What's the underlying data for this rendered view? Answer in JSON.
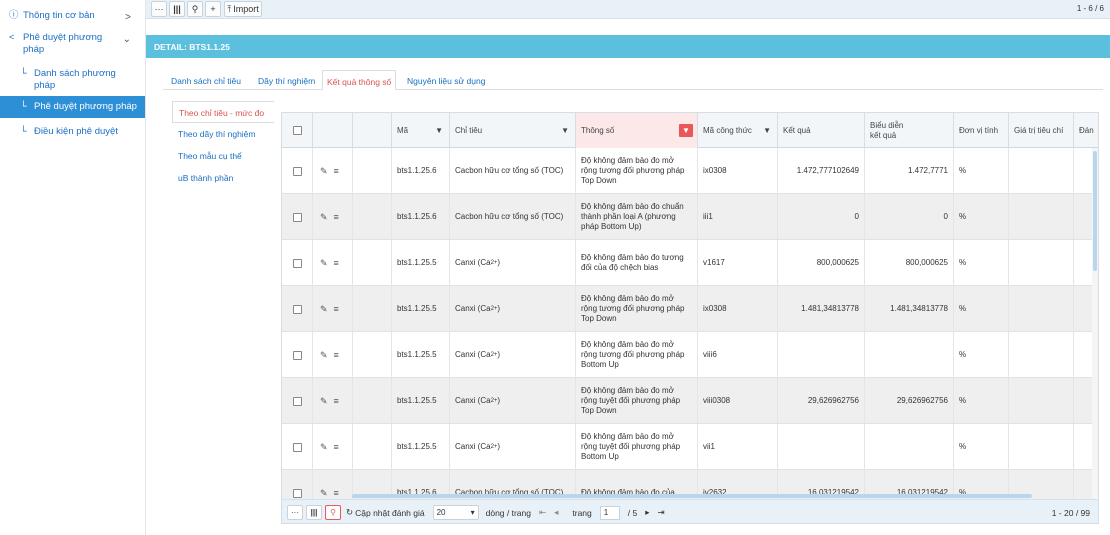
{
  "sidebar": {
    "items": [
      {
        "label": "Thông tin cơ bản",
        "icon": "info-icon",
        "chevron": ">"
      },
      {
        "label": "Phê duyệt phương pháp",
        "icon": "share-icon",
        "chevron": "⌄"
      },
      {
        "label": "Danh sách phương pháp"
      },
      {
        "label": "Phê duyệt phương pháp"
      },
      {
        "label": "Điều kiện phê duyệt"
      }
    ]
  },
  "toolbar": {
    "more_label": "···",
    "columns_label": "|||",
    "search_label": "⚲",
    "add_label": "+",
    "import_label": "Import",
    "count": "1 - 6 / 6"
  },
  "detail": {
    "title": "DETAIL: BTS1.1.25"
  },
  "tabs": [
    {
      "label": "Danh sách chỉ tiêu"
    },
    {
      "label": "Dãy thí nghiệm"
    },
    {
      "label": "Kết quả thông số"
    },
    {
      "label": "Nguyên liệu sử dụng"
    }
  ],
  "subnav": [
    {
      "label": "Theo chỉ tiêu - mức đo"
    },
    {
      "label": "Theo dãy thí nghiệm"
    },
    {
      "label": "Theo mẫu cụ thể"
    },
    {
      "label": "uB thành phần"
    }
  ],
  "grid": {
    "headers": {
      "ma": "Mã",
      "chi_tieu": "Chỉ tiêu",
      "thong_so": "Thông số",
      "ma_cong_thuc": "Mã công thức",
      "ket_qua": "Kết quả",
      "bieu_dien_1": "Biểu diễn",
      "bieu_dien_2": "kết quả",
      "don_vi": "Đơn vị tính",
      "gia_tri": "Giá trị tiêu chí",
      "extra": "Đán"
    },
    "rows": [
      {
        "ma": "bts1.1.25.6",
        "chi_tieu": "Cacbon hữu cơ tổng số (TOC)",
        "chi_tieu_sup": "",
        "thong_so": "Độ không đảm bảo đo mở rộng tương đối phương pháp Top Down",
        "ma_ct": "ix0308",
        "ket_qua": "1.472,777102649",
        "bieu_dien": "1.472,7771",
        "don_vi": "%"
      },
      {
        "ma": "bts1.1.25.6",
        "chi_tieu": "Cacbon hữu cơ tổng số (TOC)",
        "chi_tieu_sup": "",
        "thong_so": "Độ không đảm bảo đo chuẩn thành phần loại A (phương pháp Bottom Up)",
        "ma_ct": "iii1",
        "ket_qua": "0",
        "bieu_dien": "0",
        "don_vi": "%"
      },
      {
        "ma": "bts1.1.25.5",
        "chi_tieu": "Canxi (Ca",
        "chi_tieu_sup": "2+",
        "thong_so": "Độ không đảm bảo đo tương đối của độ chệch bias",
        "ma_ct": "v1617",
        "ket_qua": "800,000625",
        "bieu_dien": "800,000625",
        "don_vi": "%"
      },
      {
        "ma": "bts1.1.25.5",
        "chi_tieu": "Canxi (Ca",
        "chi_tieu_sup": "2+",
        "thong_so": "Độ không đảm bảo đo mở rộng tương đối phương pháp Top Down",
        "ma_ct": "ix0308",
        "ket_qua": "1.481,34813778",
        "bieu_dien": "1.481,34813778",
        "don_vi": "%"
      },
      {
        "ma": "bts1.1.25.5",
        "chi_tieu": "Canxi (Ca",
        "chi_tieu_sup": "2+",
        "thong_so": "Độ không đảm bảo đo mở rộng tương đối phương pháp Bottom Up",
        "ma_ct": "viii6",
        "ket_qua": "",
        "bieu_dien": "",
        "don_vi": "%"
      },
      {
        "ma": "bts1.1.25.5",
        "chi_tieu": "Canxi (Ca",
        "chi_tieu_sup": "2+",
        "thong_so": "Độ không đảm bảo đo mở rộng tuyệt đối phương pháp Top Down",
        "ma_ct": "viii0308",
        "ket_qua": "29,626962756",
        "bieu_dien": "29,626962756",
        "don_vi": "%"
      },
      {
        "ma": "bts1.1.25.5",
        "chi_tieu": "Canxi (Ca",
        "chi_tieu_sup": "2+",
        "thong_so": "Độ không đảm bảo đo mở rộng tuyệt đối phương pháp Bottom Up",
        "ma_ct": "vii1",
        "ket_qua": "",
        "bieu_dien": "",
        "don_vi": "%"
      },
      {
        "ma": "bts1.1.25.6",
        "chi_tieu": "Cacbon hữu cơ tổng số (TOC)",
        "chi_tieu_sup": "",
        "thong_so": "Độ không đảm bảo đo của",
        "ma_ct": "iv2632",
        "ket_qua": "16,031219542",
        "bieu_dien": "16,031219542",
        "don_vi": "%"
      }
    ]
  },
  "pager": {
    "more": "···",
    "columns": "|||",
    "search": "⚲",
    "refresh_label": "Cập nhật đánh giá",
    "page_size": "20",
    "per_page_label": "dòng / trang",
    "first": "⇤",
    "prev": "◂",
    "page_label": "trang",
    "page": "1",
    "of_pages": "/ 5",
    "next": "▸",
    "last": "⇥",
    "count": "1 - 20 / 99"
  },
  "colors": {
    "accent": "#2d8fd5",
    "detail_bar": "#5bc0de",
    "active_tab": "#d9534f",
    "filter_active": "#e85858"
  }
}
